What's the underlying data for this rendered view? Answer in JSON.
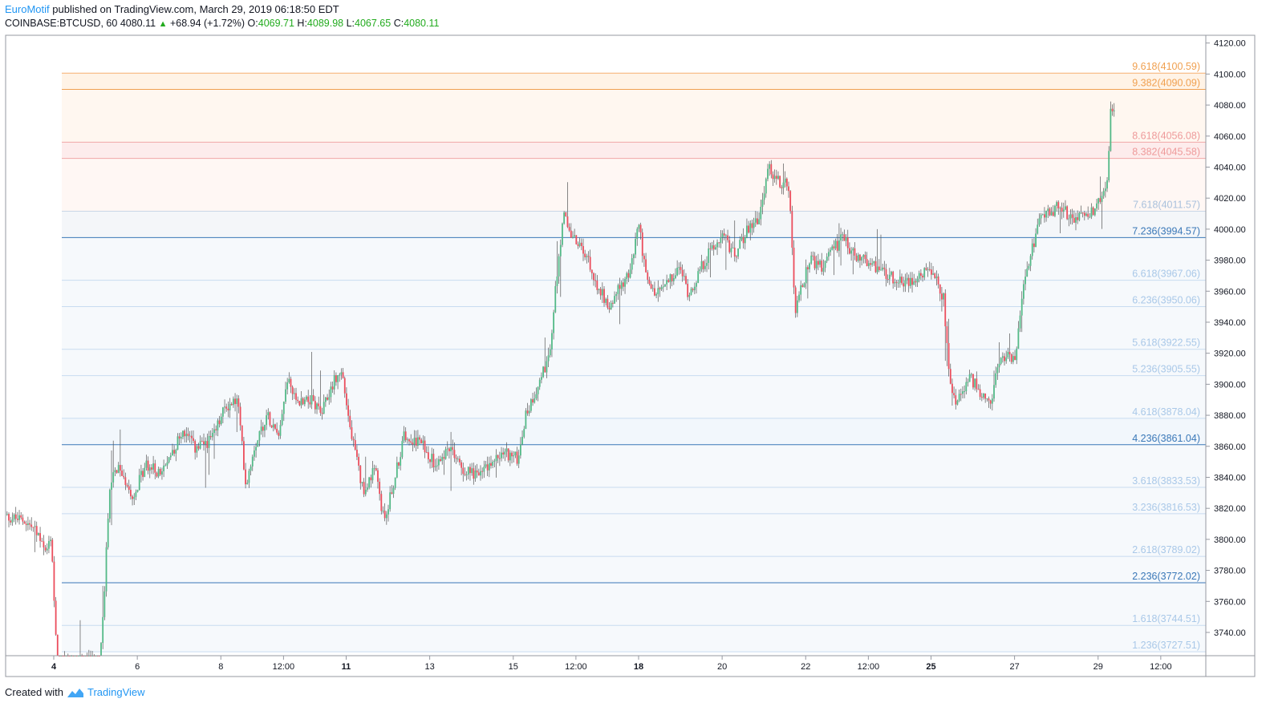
{
  "header": {
    "author": "EuroMotif",
    "published_text": "published on TradingView.com, March 29, 2019 06:18:50 EDT",
    "symbol": "COINBASE:BTCUSD, 60",
    "last": "4080.11",
    "change": "+68.94 (+1.72%)",
    "open_label": "O:",
    "open": "4069.71",
    "high_label": "H:",
    "high": "4089.98",
    "low_label": "L:",
    "low": "4067.65",
    "close_label": "C:",
    "close": "4080.11"
  },
  "footer": {
    "created_with": "Created with",
    "brand": "TradingView"
  },
  "colors": {
    "up": "#53b987",
    "down": "#eb4d5c",
    "wick": "#555555",
    "grid": "#e0e3eb"
  },
  "chart_data": {
    "type": "candlestick",
    "ylim": [
      3725,
      4125
    ],
    "y_ticks": [
      4120,
      4100,
      4080,
      4060,
      4040,
      4020,
      4000,
      3980,
      3960,
      3940,
      3920,
      3900,
      3880,
      3860,
      3840,
      3820,
      3800,
      3780,
      3760,
      3740
    ],
    "y_tick_labels": [
      "4120.00",
      "4100.00",
      "4080.00",
      "4060.00",
      "4040.00",
      "4020.00",
      "4000.00",
      "3980.00",
      "3960.00",
      "3940.00",
      "3920.00",
      "3900.00",
      "3880.00",
      "3860.00",
      "3840.00",
      "3820.00",
      "3800.00",
      "3780.00",
      "3760.00",
      "3740.00"
    ],
    "x_ticks": [
      {
        "day": 4,
        "label": "4",
        "bold": true
      },
      {
        "day": 6,
        "label": "6",
        "bold": false
      },
      {
        "day": 8,
        "label": "8",
        "bold": false
      },
      {
        "day": 9.5,
        "label": "12:00",
        "bold": false
      },
      {
        "day": 11,
        "label": "11",
        "bold": true
      },
      {
        "day": 13,
        "label": "13",
        "bold": false
      },
      {
        "day": 15,
        "label": "15",
        "bold": false
      },
      {
        "day": 16.5,
        "label": "12:00",
        "bold": false
      },
      {
        "day": 18,
        "label": "18",
        "bold": true
      },
      {
        "day": 20,
        "label": "20",
        "bold": false
      },
      {
        "day": 22,
        "label": "22",
        "bold": false
      },
      {
        "day": 23.5,
        "label": "12:00",
        "bold": false
      },
      {
        "day": 25,
        "label": "25",
        "bold": true
      },
      {
        "day": 27,
        "label": "27",
        "bold": false
      },
      {
        "day": 29,
        "label": "29",
        "bold": false
      },
      {
        "day": 30.5,
        "label": "12:00",
        "bold": false
      }
    ],
    "fib_levels": [
      {
        "label": "9.618(4100.59)",
        "price": 4100.59,
        "color": "#f0a050",
        "line": "#f5b070",
        "fill": "#fff3e6"
      },
      {
        "label": "9.382(4090.09)",
        "price": 4090.09,
        "color": "#f0a050",
        "line": "#f0a050",
        "fill": "#fff7f0"
      },
      {
        "label": "8.618(4056.08)",
        "price": 4056.08,
        "color": "#ee9a9a",
        "line": "#f0a8a8",
        "fill": "#fdecec"
      },
      {
        "label": "8.382(4045.58)",
        "price": 4045.58,
        "color": "#ee9a9a",
        "line": "#f0a8a8",
        "fill": "#fff7f4"
      },
      {
        "label": "7.618(4011.57)",
        "price": 4011.57,
        "color": "#a9c1dc",
        "line": "#c9d6e6",
        "fill": "#f4f6f9"
      },
      {
        "label": "7.236(3994.57)",
        "price": 3994.57,
        "color": "#3a78b8",
        "line": "#3a78b8",
        "fill": "#f6f9fc"
      },
      {
        "label": "6.618(3967.06)",
        "price": 3967.06,
        "color": "#a9c8e8",
        "line": "#c8dcf0",
        "fill": "#f6f9fc"
      },
      {
        "label": "6.236(3950.06)",
        "price": 3950.06,
        "color": "#a9c8e8",
        "line": "#c8dcf0",
        "fill": "#f6f9fc"
      },
      {
        "label": "5.618(3922.55)",
        "price": 3922.55,
        "color": "#a9c8e8",
        "line": "#c8dcf0",
        "fill": "#f6f9fc"
      },
      {
        "label": "5.236(3905.55)",
        "price": 3905.55,
        "color": "#a9c8e8",
        "line": "#c8dcf0",
        "fill": "#f6f9fc"
      },
      {
        "label": "4.618(3878.04)",
        "price": 3878.04,
        "color": "#a9c8e8",
        "line": "#c8dcf0",
        "fill": "#f2f7fc"
      },
      {
        "label": "4.236(3861.04)",
        "price": 3861.04,
        "color": "#3a78b8",
        "line": "#3a78b8",
        "fill": "#f6f9fc"
      },
      {
        "label": "3.618(3833.53)",
        "price": 3833.53,
        "color": "#a9c8e8",
        "line": "#c8dcf0",
        "fill": "#f6f9fc"
      },
      {
        "label": "3.236(3816.53)",
        "price": 3816.53,
        "color": "#a9c8e8",
        "line": "#c8dcf0",
        "fill": "#f6f9fc"
      },
      {
        "label": "2.618(3789.02)",
        "price": 3789.02,
        "color": "#a9c8e8",
        "line": "#c8dcf0",
        "fill": "#f6f9fc"
      },
      {
        "label": "2.236(3772.02)",
        "price": 3772.02,
        "color": "#3a78b8",
        "line": "#3a78b8",
        "fill": "#f6f9fc"
      },
      {
        "label": "1.618(3744.51)",
        "price": 3744.51,
        "color": "#a9c8e8",
        "line": "#c8dcf0",
        "fill": "#f6f9fc"
      },
      {
        "label": "1.236(3727.51)",
        "price": 3727.51,
        "color": "#a9c8e8",
        "line": "#c8dcf0",
        "fill": "#f6f9fc"
      }
    ],
    "price_path": [
      [
        2.8,
        3815
      ],
      [
        3.3,
        3812
      ],
      [
        3.6,
        3805
      ],
      [
        3.8,
        3790
      ],
      [
        3.95,
        3800
      ],
      [
        4.0,
        3760
      ],
      [
        4.1,
        3720
      ],
      [
        5.1,
        3722
      ],
      [
        5.2,
        3760
      ],
      [
        5.35,
        3840
      ],
      [
        5.6,
        3845
      ],
      [
        5.9,
        3828
      ],
      [
        6.2,
        3848
      ],
      [
        6.6,
        3842
      ],
      [
        6.8,
        3855
      ],
      [
        7.1,
        3870
      ],
      [
        7.4,
        3858
      ],
      [
        7.8,
        3865
      ],
      [
        8.1,
        3885
      ],
      [
        8.4,
        3890
      ],
      [
        8.6,
        3835
      ],
      [
        8.8,
        3860
      ],
      [
        9.1,
        3880
      ],
      [
        9.4,
        3870
      ],
      [
        9.6,
        3905
      ],
      [
        9.8,
        3888
      ],
      [
        10.1,
        3892
      ],
      [
        10.4,
        3880
      ],
      [
        10.7,
        3902
      ],
      [
        10.9,
        3908
      ],
      [
        11.1,
        3870
      ],
      [
        11.4,
        3832
      ],
      [
        11.7,
        3845
      ],
      [
        11.9,
        3812
      ],
      [
        12.1,
        3832
      ],
      [
        12.4,
        3868
      ],
      [
        12.8,
        3862
      ],
      [
        13.1,
        3850
      ],
      [
        13.5,
        3858
      ],
      [
        13.8,
        3845
      ],
      [
        14.2,
        3842
      ],
      [
        14.5,
        3850
      ],
      [
        14.8,
        3856
      ],
      [
        15.1,
        3852
      ],
      [
        15.3,
        3880
      ],
      [
        15.6,
        3900
      ],
      [
        15.9,
        3920
      ],
      [
        16.0,
        3960
      ],
      [
        16.2,
        4010
      ],
      [
        16.4,
        3995
      ],
      [
        16.7,
        3985
      ],
      [
        17.0,
        3965
      ],
      [
        17.3,
        3950
      ],
      [
        17.6,
        3965
      ],
      [
        17.8,
        3972
      ],
      [
        18.0,
        4005
      ],
      [
        18.2,
        3965
      ],
      [
        18.4,
        3958
      ],
      [
        18.7,
        3965
      ],
      [
        19.0,
        3975
      ],
      [
        19.2,
        3958
      ],
      [
        19.5,
        3975
      ],
      [
        19.8,
        3990
      ],
      [
        20.0,
        3998
      ],
      [
        20.3,
        3982
      ],
      [
        20.6,
        4000
      ],
      [
        20.9,
        4008
      ],
      [
        21.1,
        4040
      ],
      [
        21.4,
        4030
      ],
      [
        21.6,
        4028
      ],
      [
        21.75,
        3945
      ],
      [
        21.9,
        3962
      ],
      [
        22.1,
        3980
      ],
      [
        22.4,
        3975
      ],
      [
        22.7,
        3988
      ],
      [
        22.9,
        3995
      ],
      [
        23.1,
        3985
      ],
      [
        23.4,
        3980
      ],
      [
        23.7,
        3975
      ],
      [
        24.0,
        3970
      ],
      [
        24.3,
        3965
      ],
      [
        24.6,
        3968
      ],
      [
        24.9,
        3972
      ],
      [
        25.1,
        3968
      ],
      [
        25.3,
        3955
      ],
      [
        25.45,
        3900
      ],
      [
        25.6,
        3885
      ],
      [
        25.9,
        3905
      ],
      [
        26.2,
        3895
      ],
      [
        26.4,
        3885
      ],
      [
        26.6,
        3912
      ],
      [
        26.8,
        3920
      ],
      [
        27.0,
        3915
      ],
      [
        27.2,
        3960
      ],
      [
        27.4,
        3985
      ],
      [
        27.6,
        4005
      ],
      [
        27.8,
        4010
      ],
      [
        28.1,
        4015
      ],
      [
        28.4,
        4005
      ],
      [
        28.6,
        4012
      ],
      [
        28.9,
        4010
      ],
      [
        29.0,
        4020
      ],
      [
        29.2,
        4025
      ],
      [
        29.3,
        4075
      ],
      [
        29.4,
        4080
      ]
    ]
  }
}
